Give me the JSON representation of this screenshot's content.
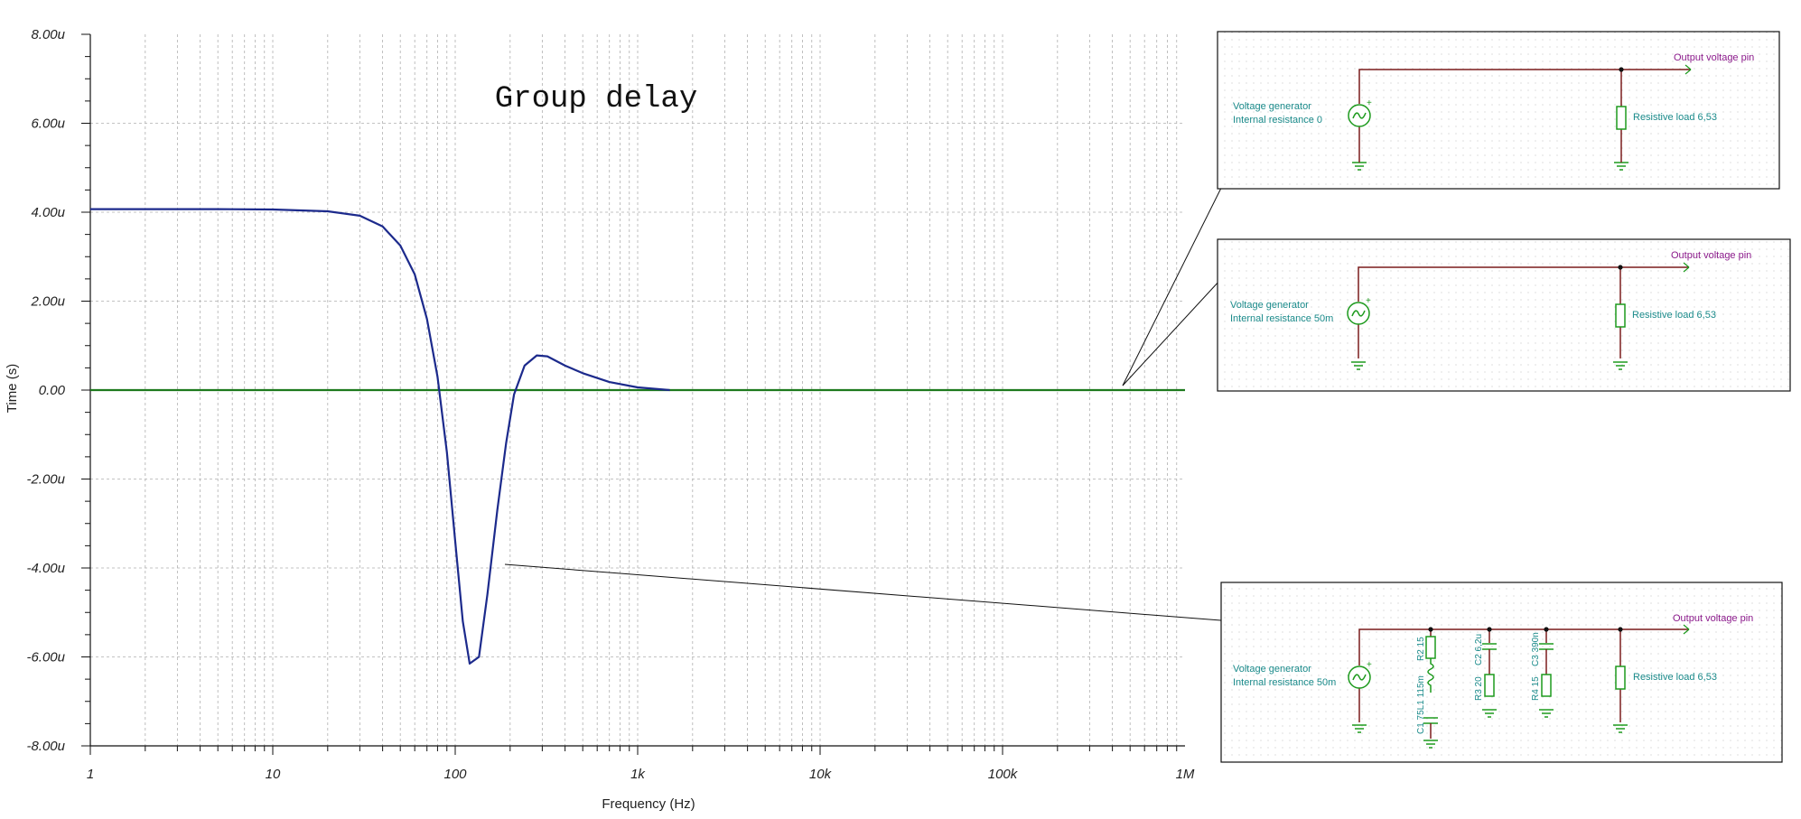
{
  "chart_data": {
    "type": "line",
    "title": "Group delay",
    "xlabel": "Frequency (Hz)",
    "ylabel": "Time (s)",
    "xscale": "log",
    "xlim": [
      1,
      1000000
    ],
    "ylim": [
      -8e-06,
      8e-06
    ],
    "grid": true,
    "x_ticks": [
      {
        "value": 1,
        "label": "1"
      },
      {
        "value": 10,
        "label": "10"
      },
      {
        "value": 100,
        "label": "100"
      },
      {
        "value": 1000,
        "label": "1k"
      },
      {
        "value": 10000,
        "label": "10k"
      },
      {
        "value": 100000,
        "label": "100k"
      },
      {
        "value": 1000000,
        "label": "1M"
      }
    ],
    "y_ticks": [
      {
        "value": 8e-06,
        "label": "8.00u"
      },
      {
        "value": 6e-06,
        "label": "6.00u"
      },
      {
        "value": 4e-06,
        "label": "4.00u"
      },
      {
        "value": 2e-06,
        "label": "2.00u"
      },
      {
        "value": 0,
        "label": "0.00"
      },
      {
        "value": -2e-06,
        "label": "-2.00u"
      },
      {
        "value": -4e-06,
        "label": "-4.00u"
      },
      {
        "value": -6e-06,
        "label": "-6.00u"
      },
      {
        "value": -8e-06,
        "label": "-8.00u"
      }
    ],
    "series": [
      {
        "color": "#1c2a8c",
        "x": [
          1,
          2,
          5,
          10,
          20,
          30,
          40,
          50,
          60,
          70,
          80,
          90,
          100,
          110,
          120,
          135,
          150,
          170,
          190,
          210,
          240,
          280,
          320,
          400,
          500,
          700,
          1000,
          1500
        ],
        "y": [
          4.07e-06,
          4.07e-06,
          4.07e-06,
          4.06e-06,
          4.02e-06,
          3.92e-06,
          3.68e-06,
          3.25e-06,
          2.6e-06,
          1.6e-06,
          3e-07,
          -1.4e-06,
          -3.4e-06,
          -5.2e-06,
          -6.15e-06,
          -6e-06,
          -4.6e-06,
          -2.7e-06,
          -1.2e-06,
          -1e-07,
          5.5e-07,
          7.8e-07,
          7.6e-07,
          5.5e-07,
          3.8e-07,
          1.8e-07,
          6e-08,
          0.0
        ]
      },
      {
        "color": "#1d7a1d",
        "x": [
          1,
          1000000
        ],
        "y": [
          0,
          0
        ]
      }
    ]
  },
  "schematics": [
    {
      "generator_label_1": "Voltage generator",
      "generator_label_2": "Internal resistance 0",
      "output_label": "Output voltage pin",
      "load_label": "Resistive load 6,53"
    },
    {
      "generator_label_1": "Voltage generator",
      "generator_label_2": "Internal resistance 50m",
      "output_label": "Output voltage pin",
      "load_label": "Resistive load 6,53"
    },
    {
      "generator_label_1": "Voltage generator",
      "generator_label_2": "Internal resistance 50m",
      "output_label": "Output voltage pin",
      "load_label": "Resistive load 6,53",
      "components": {
        "r2": "R2 15",
        "c1l1": "C1 75L1 115m",
        "c2": "C2 6,2u",
        "r3": "R3 20",
        "c3": "C3 390n",
        "r4": "R4 15"
      }
    }
  ],
  "colors": {
    "axis": "#111111",
    "grid": "#b0b0b0",
    "wire": "#7a1c1c",
    "component": "#1d9a1d",
    "schematic_text": "#1a8a8a",
    "output_text": "#8b1a8b"
  }
}
